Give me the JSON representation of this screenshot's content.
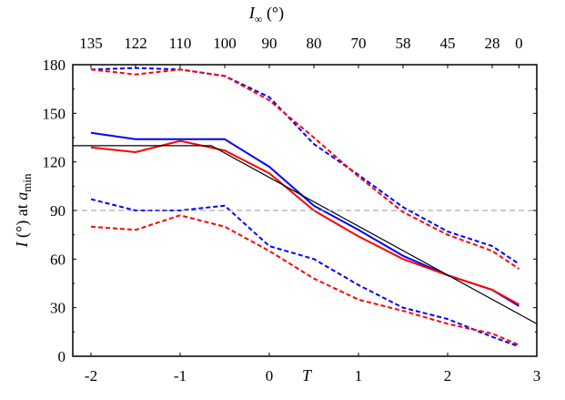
{
  "chart_data": {
    "type": "line",
    "title": "",
    "xlabel": "T",
    "ylabel": "I (°) at a_min",
    "top_xlabel": "I∞ (°)",
    "xlim": [
      -2.2,
      3
    ],
    "ylim": [
      0,
      180
    ],
    "x_ticks": [
      -2,
      -1,
      0,
      1,
      2,
      3
    ],
    "x_tick_labels": [
      "-2",
      "-1",
      "0",
      "1",
      "2",
      "3"
    ],
    "y_ticks": [
      0,
      30,
      60,
      90,
      120,
      150,
      180
    ],
    "y_tick_labels": [
      "0",
      "30",
      "60",
      "90",
      "120",
      "150",
      "180"
    ],
    "top_ticks": [
      -2,
      -1.5,
      -1,
      -0.5,
      0,
      0.5,
      1,
      1.5,
      2,
      2.5,
      2.8
    ],
    "top_tick_labels": [
      "135",
      "122",
      "110",
      "100",
      "90",
      "80",
      "70",
      "58",
      "45",
      "28",
      "0"
    ],
    "grid": false,
    "legend": null,
    "reference_line": {
      "y": 90,
      "style": "dashed",
      "color": "#999999"
    },
    "x": [
      -2,
      -1.5,
      -1,
      -0.5,
      0,
      0.5,
      1,
      1.5,
      2,
      2.5,
      2.8
    ],
    "series": [
      {
        "name": "blue solid",
        "color": "#0000ff",
        "dash": "solid",
        "values": [
          138,
          134,
          134,
          134,
          117,
          93,
          78,
          62,
          50,
          41,
          31
        ]
      },
      {
        "name": "red solid",
        "color": "#ff0000",
        "dash": "solid",
        "values": [
          129,
          126,
          133,
          127,
          113,
          90,
          74,
          60,
          50,
          41,
          32
        ]
      },
      {
        "name": "blue dashed upper",
        "color": "#0000ff",
        "dash": "dashed",
        "values": [
          177,
          178,
          177,
          173,
          160,
          131,
          112,
          92,
          77,
          68,
          57
        ]
      },
      {
        "name": "red dashed upper",
        "color": "#ff0000",
        "dash": "dashed",
        "values": [
          177,
          174,
          177,
          173,
          158,
          135,
          111,
          89,
          75,
          65,
          54
        ]
      },
      {
        "name": "blue dashed lower",
        "color": "#0000ff",
        "dash": "dashed",
        "values": [
          97,
          90,
          90,
          93,
          68,
          60,
          44,
          30,
          23,
          12,
          6
        ]
      },
      {
        "name": "red dashed lower",
        "color": "#ff0000",
        "dash": "dashed",
        "values": [
          80,
          78,
          87,
          80,
          65,
          48,
          35,
          28,
          20,
          14,
          7
        ]
      },
      {
        "name": "black reference",
        "color": "#000000",
        "dash": "solid",
        "x": [
          -2.2,
          -0.65,
          3
        ],
        "values": [
          130,
          130,
          20
        ]
      }
    ]
  }
}
